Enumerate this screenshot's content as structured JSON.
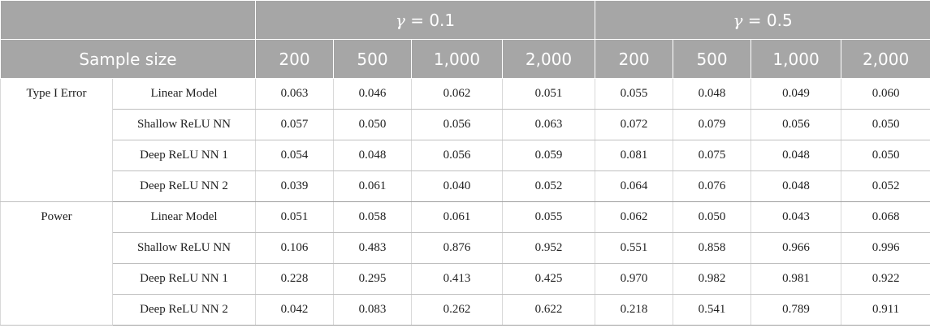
{
  "header": {
    "gamma_symbol": "γ",
    "gamma_groups": [
      {
        "label": " = 0.1"
      },
      {
        "label": " = 0.5"
      }
    ],
    "sample_size_label": "Sample size",
    "sample_sizes": [
      "200",
      "500",
      "1,000",
      "2,000",
      "200",
      "500",
      "1,000",
      "2,000"
    ]
  },
  "groups": [
    {
      "label": "Type I Error",
      "rows": [
        {
          "method": "Linear Model",
          "values": [
            "0.063",
            "0.046",
            "0.062",
            "0.051",
            "0.055",
            "0.048",
            "0.049",
            "0.060"
          ]
        },
        {
          "method": "Shallow ReLU NN",
          "values": [
            "0.057",
            "0.050",
            "0.056",
            "0.063",
            "0.072",
            "0.079",
            "0.056",
            "0.050"
          ]
        },
        {
          "method": "Deep ReLU NN 1",
          "values": [
            "0.054",
            "0.048",
            "0.056",
            "0.059",
            "0.081",
            "0.075",
            "0.048",
            "0.050"
          ]
        },
        {
          "method": "Deep ReLU NN 2",
          "values": [
            "0.039",
            "0.061",
            "0.040",
            "0.052",
            "0.064",
            "0.076",
            "0.048",
            "0.052"
          ]
        }
      ]
    },
    {
      "label": "Power",
      "rows": [
        {
          "method": "Linear Model",
          "values": [
            "0.051",
            "0.058",
            "0.061",
            "0.055",
            "0.062",
            "0.050",
            "0.043",
            "0.068"
          ]
        },
        {
          "method": "Shallow ReLU NN",
          "values": [
            "0.106",
            "0.483",
            "0.876",
            "0.952",
            "0.551",
            "0.858",
            "0.966",
            "0.996"
          ]
        },
        {
          "method": "Deep ReLU NN 1",
          "values": [
            "0.228",
            "0.295",
            "0.413",
            "0.425",
            "0.970",
            "0.982",
            "0.981",
            "0.922"
          ]
        },
        {
          "method": "Deep ReLU NN 2",
          "values": [
            "0.042",
            "0.083",
            "0.262",
            "0.622",
            "0.218",
            "0.541",
            "0.789",
            "0.911"
          ]
        }
      ]
    }
  ]
}
